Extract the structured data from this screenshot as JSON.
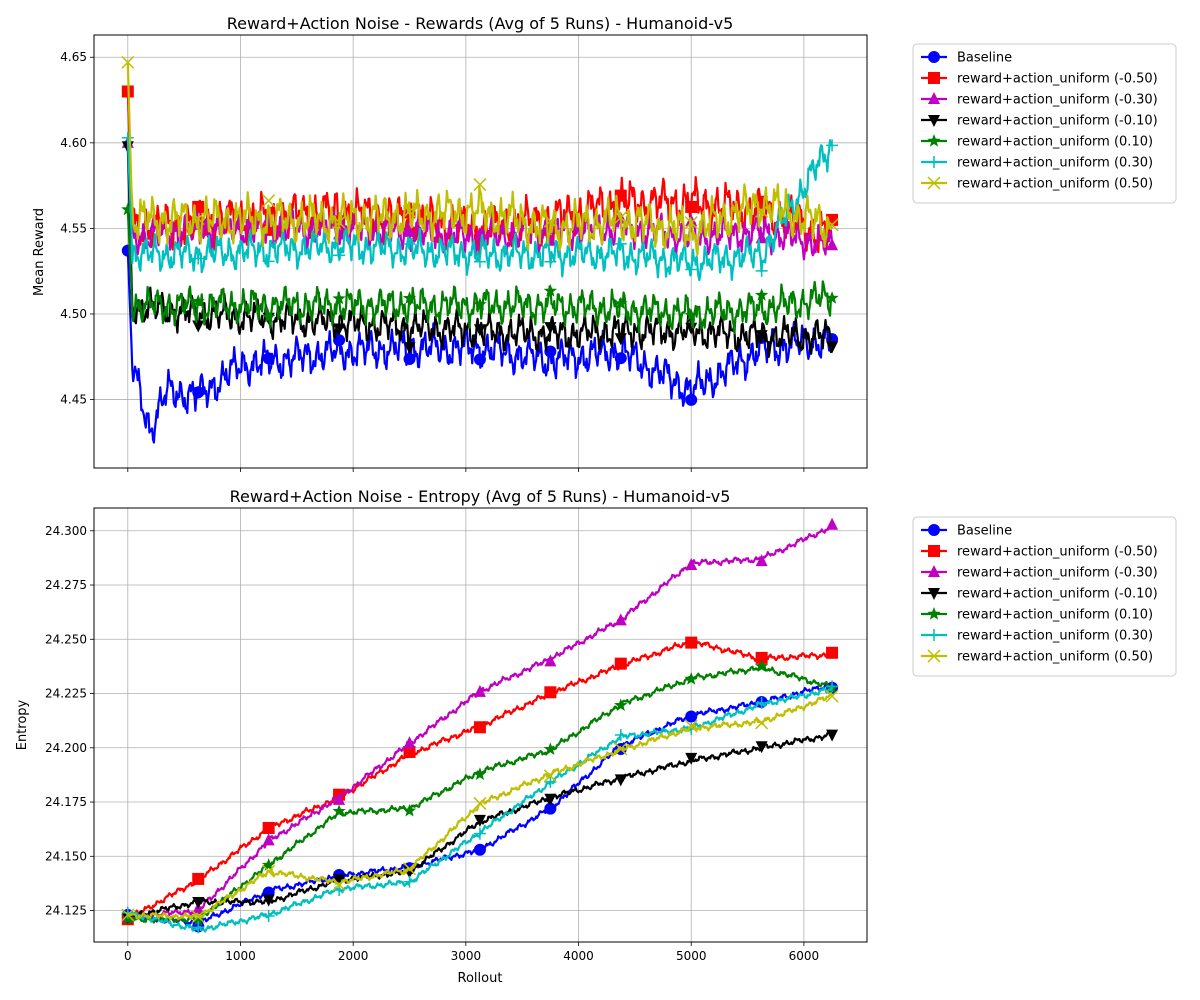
{
  "chart_data": [
    {
      "type": "line",
      "title": "Reward+Action Noise - Rewards (Avg of 5 Runs) - Humanoid-v5",
      "xlabel": "",
      "ylabel": "Mean Reward",
      "xlim": [
        -300,
        6560
      ],
      "ylim": [
        4.41,
        4.663
      ],
      "xticks": [
        0,
        1000,
        2000,
        3000,
        4000,
        5000,
        6000
      ],
      "xtick_labels": [
        "",
        "",
        "",
        "",
        "",
        "",
        ""
      ],
      "yticks": [
        4.45,
        4.5,
        4.55,
        4.6,
        4.65
      ],
      "ytick_labels": [
        "4.45",
        "4.50",
        "4.55",
        "4.60",
        "4.65"
      ],
      "grid": true,
      "legend_position": "outside-right-top",
      "x_range": [
        0,
        6250
      ],
      "marker_x": [
        0,
        625,
        1250,
        1875,
        2500,
        3125,
        3750,
        4375,
        5000,
        5625,
        6250
      ],
      "noise": "high-frequency fluctuation around the base series",
      "series": [
        {
          "name": "Baseline",
          "color": "#0000ff",
          "marker": "circle",
          "x": [
            0,
            40,
            200,
            350,
            625,
            1000,
            1875,
            2500,
            3125,
            3750,
            4375,
            5000,
            5625,
            6250
          ],
          "y": [
            4.537,
            4.47,
            4.432,
            4.455,
            4.452,
            4.47,
            4.478,
            4.48,
            4.48,
            4.473,
            4.478,
            4.455,
            4.48,
            4.485
          ],
          "amplitude": 0.012
        },
        {
          "name": "reward+action_uniform (-0.50)",
          "color": "#ff0000",
          "marker": "square",
          "x": [
            0,
            40,
            625,
            1875,
            3125,
            3750,
            4375,
            5000,
            5625,
            6250
          ],
          "y": [
            4.63,
            4.55,
            4.553,
            4.56,
            4.55,
            4.555,
            4.565,
            4.565,
            4.56,
            4.545
          ],
          "amplitude": 0.014
        },
        {
          "name": "reward+action_uniform (-0.30)",
          "color": "#c000c0",
          "marker": "triangle-up",
          "x": [
            0,
            40,
            625,
            1875,
            3125,
            3750,
            4375,
            5000,
            5625,
            6250
          ],
          "y": [
            4.6,
            4.545,
            4.55,
            4.55,
            4.545,
            4.548,
            4.55,
            4.545,
            4.548,
            4.54
          ],
          "amplitude": 0.011
        },
        {
          "name": "reward+action_uniform (-0.10)",
          "color": "#000000",
          "marker": "triangle-down",
          "x": [
            0,
            40,
            625,
            1875,
            3125,
            3750,
            4375,
            5000,
            5625,
            6250
          ],
          "y": [
            4.598,
            4.505,
            4.5,
            4.495,
            4.49,
            4.488,
            4.49,
            4.49,
            4.487,
            4.487
          ],
          "amplitude": 0.011
        },
        {
          "name": "reward+action_uniform (0.10)",
          "color": "#008000",
          "marker": "star",
          "x": [
            0,
            40,
            625,
            1875,
            3125,
            3750,
            4375,
            5000,
            5625,
            6250
          ],
          "y": [
            4.561,
            4.505,
            4.505,
            4.505,
            4.505,
            4.505,
            4.503,
            4.5,
            4.503,
            4.51
          ],
          "amplitude": 0.011
        },
        {
          "name": "reward+action_uniform (0.30)",
          "color": "#00bfbf",
          "marker": "plus",
          "x": [
            0,
            40,
            625,
            1875,
            3125,
            3750,
            4375,
            5000,
            5625,
            6250
          ],
          "y": [
            4.603,
            4.535,
            4.535,
            4.54,
            4.535,
            4.535,
            4.535,
            4.53,
            4.535,
            4.6
          ],
          "amplitude": 0.011
        },
        {
          "name": "reward+action_uniform (0.50)",
          "color": "#bfbf00",
          "marker": "x",
          "x": [
            0,
            40,
            625,
            1875,
            3125,
            3750,
            4375,
            5000,
            5625,
            6250
          ],
          "y": [
            4.647,
            4.555,
            4.555,
            4.555,
            4.56,
            4.55,
            4.555,
            4.548,
            4.565,
            4.55
          ],
          "amplitude": 0.014
        }
      ]
    },
    {
      "type": "line",
      "title": "Reward+Action Noise - Entropy (Avg of 5 Runs) - Humanoid-v5",
      "xlabel": "Rollout",
      "ylabel": "Entropy",
      "xlim": [
        -300,
        6560
      ],
      "ylim": [
        24.1105,
        24.3105
      ],
      "xticks": [
        0,
        1000,
        2000,
        3000,
        4000,
        5000,
        6000
      ],
      "xtick_labels": [
        "0",
        "1000",
        "2000",
        "3000",
        "4000",
        "5000",
        "6000"
      ],
      "yticks": [
        24.125,
        24.15,
        24.175,
        24.2,
        24.225,
        24.25,
        24.275,
        24.3
      ],
      "ytick_labels": [
        "24.125",
        "24.150",
        "24.175",
        "24.200",
        "24.225",
        "24.250",
        "24.275",
        "24.300"
      ],
      "grid": true,
      "legend_position": "outside-right-top",
      "x_range": [
        0,
        6250
      ],
      "marker_x": [
        0,
        625,
        1250,
        1875,
        2500,
        3125,
        3750,
        4375,
        5000,
        5625,
        6250
      ],
      "noise": "low-amplitude wobble",
      "series": [
        {
          "name": "Baseline",
          "color": "#0000ff",
          "marker": "circle",
          "x": [
            0,
            625,
            1250,
            1875,
            2500,
            3125,
            3750,
            4375,
            5000,
            5625,
            6250
          ],
          "y": [
            24.123,
            24.119,
            24.134,
            24.141,
            24.145,
            24.153,
            24.172,
            24.201,
            24.215,
            24.221,
            24.229
          ],
          "amplitude": 0.0015
        },
        {
          "name": "reward+action_uniform (-0.50)",
          "color": "#ff0000",
          "marker": "square",
          "x": [
            0,
            625,
            1250,
            1875,
            2500,
            3125,
            3750,
            4375,
            5000,
            5625,
            6250
          ],
          "y": [
            24.121,
            24.139,
            24.163,
            24.177,
            24.197,
            24.21,
            24.225,
            24.238,
            24.249,
            24.241,
            24.243
          ],
          "amplitude": 0.0015
        },
        {
          "name": "reward+action_uniform (-0.30)",
          "color": "#c000c0",
          "marker": "triangle-up",
          "x": [
            0,
            625,
            1250,
            1875,
            2500,
            3125,
            3750,
            4375,
            5000,
            5625,
            6250
          ],
          "y": [
            24.122,
            24.125,
            24.157,
            24.177,
            24.202,
            24.226,
            24.241,
            24.259,
            24.285,
            24.287,
            24.302
          ],
          "amplitude": 0.0015
        },
        {
          "name": "reward+action_uniform (-0.10)",
          "color": "#000000",
          "marker": "triangle-down",
          "x": [
            0,
            625,
            1250,
            1875,
            2500,
            3125,
            3750,
            4375,
            5000,
            5625,
            6250
          ],
          "y": [
            24.122,
            24.129,
            24.129,
            24.139,
            24.143,
            24.166,
            24.177,
            24.186,
            24.194,
            24.2,
            24.206
          ],
          "amplitude": 0.0015
        },
        {
          "name": "reward+action_uniform (0.10)",
          "color": "#008000",
          "marker": "star",
          "x": [
            0,
            625,
            1250,
            1875,
            2500,
            3125,
            3750,
            4375,
            5000,
            5625,
            6250
          ],
          "y": [
            24.121,
            24.121,
            24.146,
            24.17,
            24.172,
            24.189,
            24.199,
            24.22,
            24.232,
            24.237,
            24.228
          ],
          "amplitude": 0.0015
        },
        {
          "name": "reward+action_uniform (0.30)",
          "color": "#00bfbf",
          "marker": "plus",
          "x": [
            0,
            625,
            1250,
            1875,
            2500,
            3125,
            3750,
            4375,
            5000,
            5625,
            6250
          ],
          "y": [
            24.124,
            24.116,
            24.123,
            24.135,
            24.138,
            24.161,
            24.184,
            24.205,
            24.209,
            24.22,
            24.227
          ],
          "amplitude": 0.0015
        },
        {
          "name": "reward+action_uniform (0.50)",
          "color": "#bfbf00",
          "marker": "x",
          "x": [
            0,
            625,
            1250,
            1875,
            2500,
            3125,
            3750,
            4375,
            5000,
            5625,
            6250
          ],
          "y": [
            24.123,
            24.122,
            24.143,
            24.138,
            24.144,
            24.174,
            24.188,
            24.199,
            24.209,
            24.212,
            24.224
          ],
          "amplitude": 0.0015
        }
      ]
    }
  ]
}
